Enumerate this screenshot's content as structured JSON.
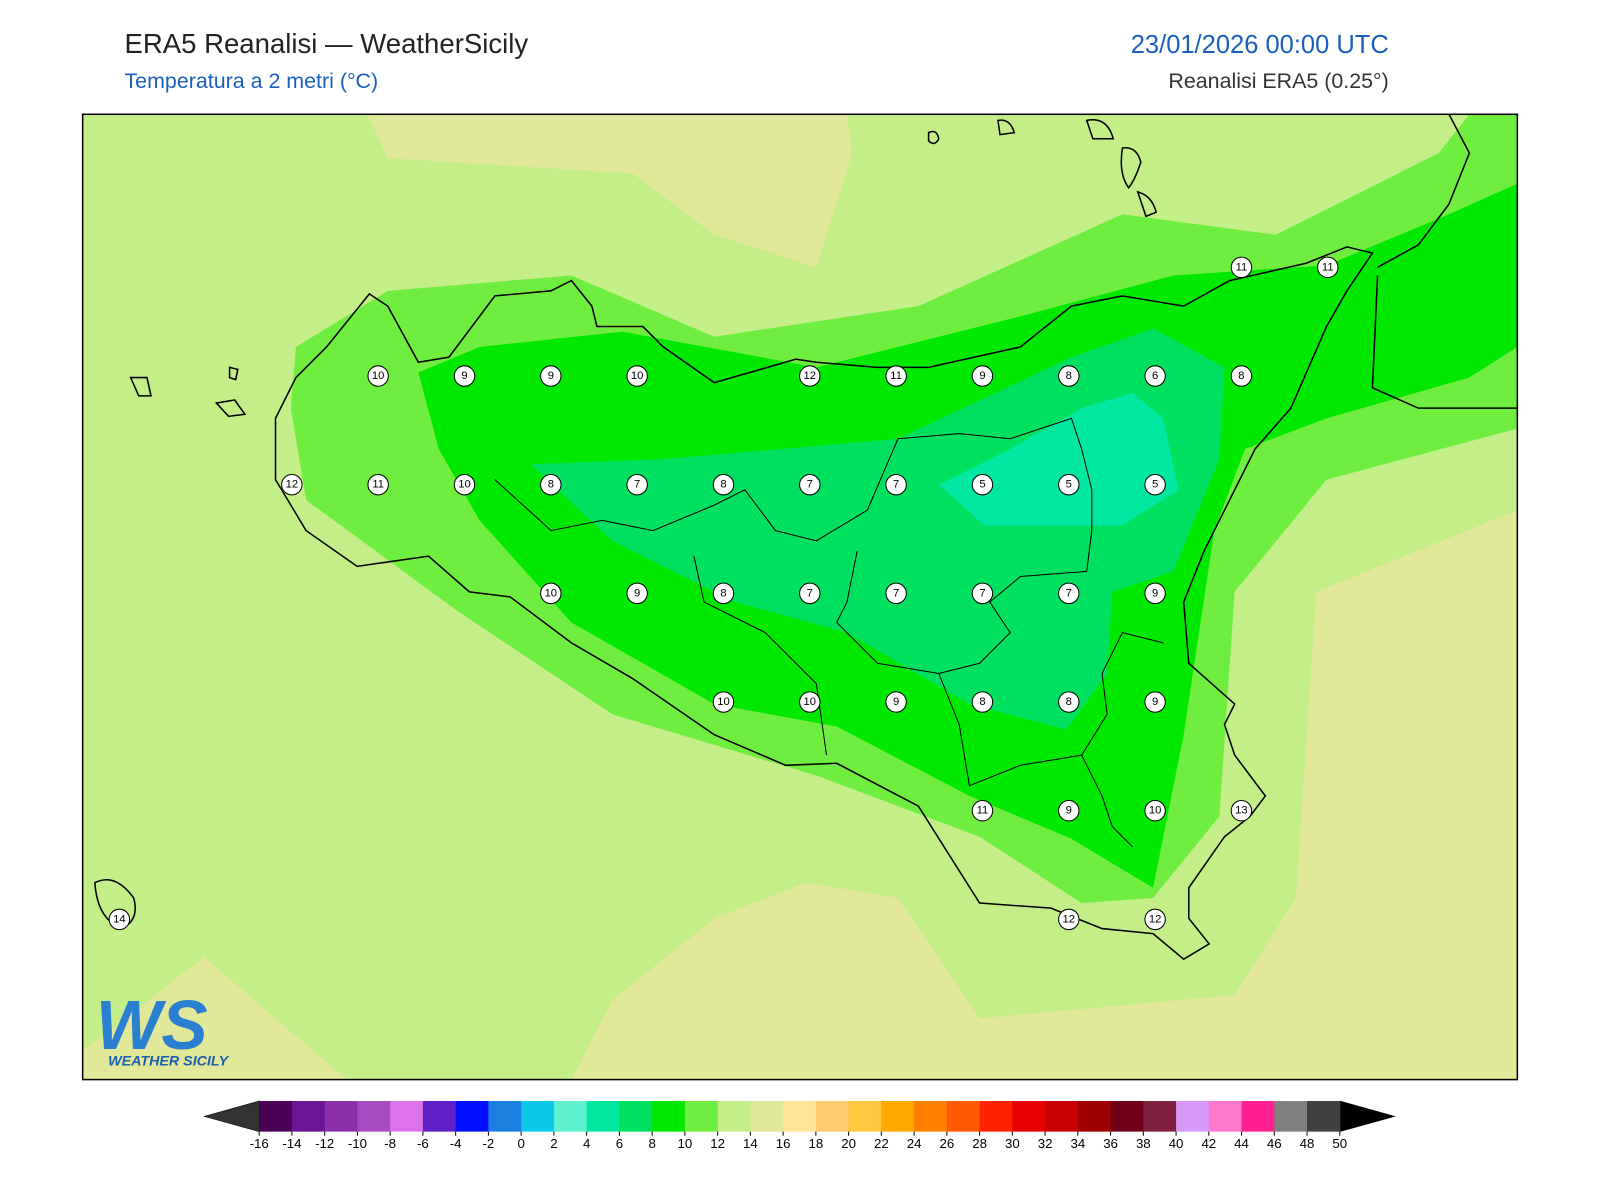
{
  "header": {
    "title": "ERA5 Reanalisi — WeatherSicily",
    "subtitle": "Temperatura a 2 metri (°C)",
    "datetime": "23/01/2026 00:00 UTC",
    "source": "Reanalisi ERA5 (0.25°)"
  },
  "map": {
    "stations": [
      11,
      11,
      10,
      9,
      9,
      10,
      12,
      11,
      9,
      8,
      6,
      8,
      12,
      11,
      10,
      8,
      7,
      8,
      7,
      7,
      5,
      5,
      5,
      10,
      9,
      8,
      7,
      7,
      7,
      7,
      9,
      10,
      10,
      9,
      8,
      8,
      9,
      11,
      9,
      10,
      13,
      14,
      12,
      12
    ]
  },
  "colorbar": {
    "ticks": [
      -16,
      -14,
      -12,
      -10,
      -8,
      -6,
      -4,
      -2,
      0,
      2,
      4,
      6,
      8,
      10,
      12,
      14,
      16,
      18,
      20,
      22,
      24,
      26,
      28,
      30,
      32,
      34,
      36,
      38,
      40,
      42,
      44,
      46,
      48,
      50
    ],
    "colors": [
      "#4b0058",
      "#6a1596",
      "#8b2fa8",
      "#a64cc0",
      "#de72ea",
      "#5e1fc7",
      "#0010ff",
      "#1a7fe0",
      "#0cc8e8",
      "#5ff0d0",
      "#00e8a0",
      "#00e060",
      "#00e800",
      "#70ee40",
      "#c3ee88",
      "#e2e89a",
      "#ffe49a",
      "#ffcc70",
      "#ffc840",
      "#ffa800",
      "#ff8000",
      "#ff5a00",
      "#ff2200",
      "#e60000",
      "#c80000",
      "#a00000",
      "#700018",
      "#802040",
      "#d898f8",
      "#ff78d0",
      "#ff2090",
      "#808080",
      "#404040"
    ],
    "under_color": "#333333",
    "over_color": "#000000"
  },
  "logo": {
    "mark": "WS",
    "text": "WEATHER SICILY"
  }
}
